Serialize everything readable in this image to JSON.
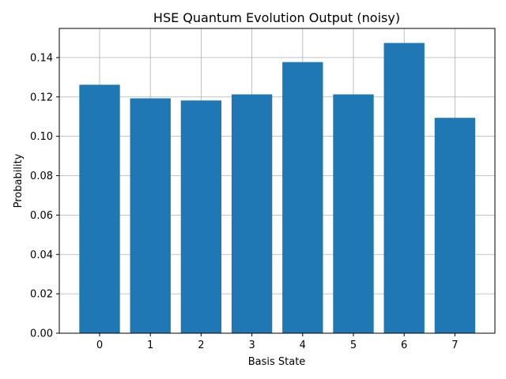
{
  "chart_data": {
    "type": "bar",
    "title": "HSE Quantum Evolution Output (noisy)",
    "xlabel": "Basis State",
    "ylabel": "Probability",
    "categories": [
      "0",
      "1",
      "2",
      "3",
      "4",
      "5",
      "6",
      "7"
    ],
    "values": [
      0.1262,
      0.1193,
      0.1182,
      0.1213,
      0.1377,
      0.1213,
      0.1474,
      0.1094
    ],
    "ylim": [
      0,
      0.1548
    ],
    "yticks": [
      "0.00",
      "0.02",
      "0.04",
      "0.06",
      "0.08",
      "0.10",
      "0.12",
      "0.14"
    ],
    "grid": true,
    "colors": {
      "bar": "#1f77b4",
      "grid": "#b0b0b0",
      "axis": "#000000"
    }
  }
}
